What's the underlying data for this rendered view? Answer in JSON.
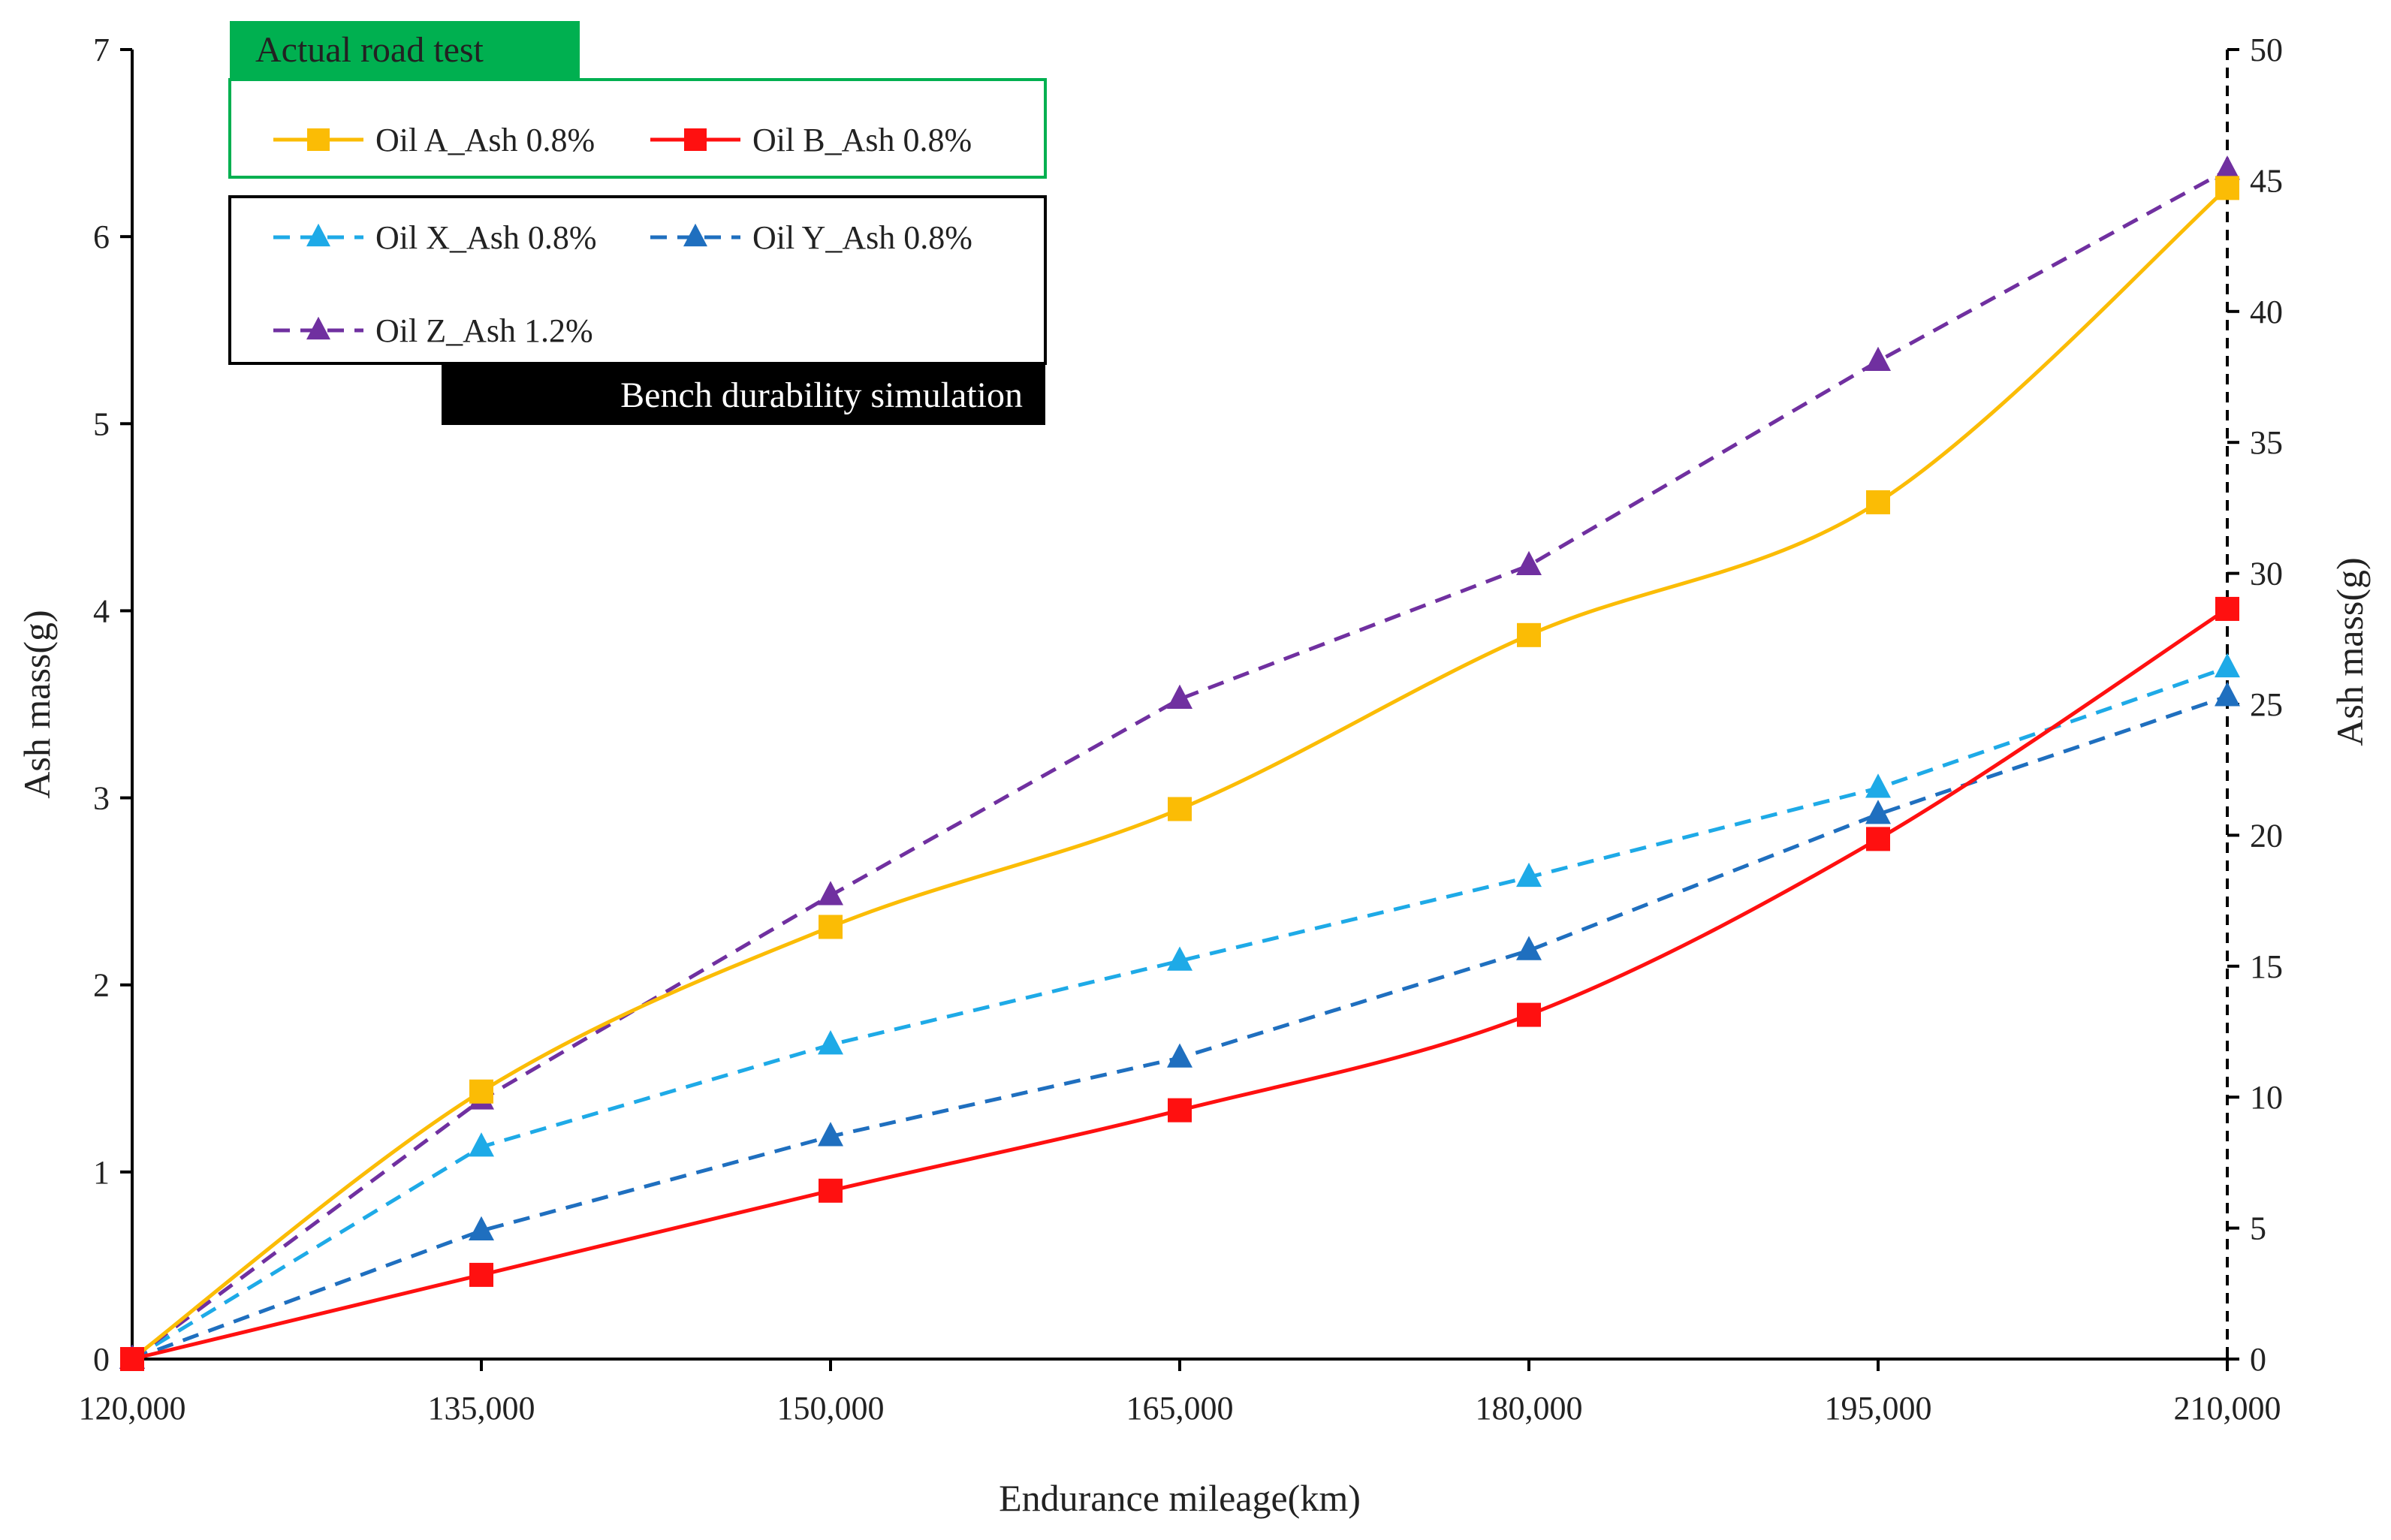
{
  "chart_data": {
    "type": "line",
    "title": "",
    "xlabel": "Endurance mileage(km)",
    "ylabel_left": "Ash mass(g)",
    "ylabel_right": "Ash mass(g)",
    "x": [
      120000,
      135000,
      150000,
      165000,
      180000,
      195000,
      210000
    ],
    "x_tick_labels": [
      "120,000",
      "135,000",
      "150,000",
      "165,000",
      "180,000",
      "195,000",
      "210,000"
    ],
    "xlim": [
      120000,
      210000
    ],
    "ylim_left": [
      0,
      7
    ],
    "ylim_right": [
      0,
      50
    ],
    "y_left_ticks": [
      "0",
      "1",
      "2",
      "3",
      "4",
      "5",
      "6",
      "7"
    ],
    "y_right_ticks": [
      "0",
      "5",
      "10",
      "15",
      "20",
      "25",
      "30",
      "35",
      "40",
      "45",
      "50"
    ],
    "grid": false,
    "legend_groups": [
      {
        "title": "Actual road test",
        "title_color": "#00b050",
        "border_color": "#00b050"
      },
      {
        "title": "Bench durability simulation",
        "title_color": "#000000",
        "border_color": "#000000"
      }
    ],
    "series": [
      {
        "name": "Oil A_Ash 0.8%",
        "group": "Actual road test",
        "axis": "left",
        "color": "#fbbc05",
        "marker": "square",
        "dashed": false,
        "smooth": true,
        "values": [
          0,
          1.43,
          2.31,
          2.94,
          3.87,
          4.58,
          6.26
        ]
      },
      {
        "name": "Oil B_Ash 0.8%",
        "group": "Actual road test",
        "axis": "left",
        "color": "#ff1010",
        "marker": "square",
        "dashed": false,
        "smooth": true,
        "values": [
          0,
          0.45,
          0.9,
          1.33,
          1.84,
          2.78,
          4.01
        ]
      },
      {
        "name": "Oil X_Ash 0.8%",
        "group": "Bench durability simulation",
        "axis": "right",
        "color": "#1eaae7",
        "marker": "triangle",
        "dashed": true,
        "smooth": false,
        "values": [
          0,
          8.1,
          12.0,
          15.2,
          18.4,
          21.8,
          26.4
        ]
      },
      {
        "name": "Oil Y_Ash 0.8%",
        "group": "Bench durability simulation",
        "axis": "right",
        "color": "#1f6fbf",
        "marker": "triangle",
        "dashed": true,
        "smooth": false,
        "values": [
          0,
          4.9,
          8.5,
          11.5,
          15.6,
          20.8,
          25.3
        ]
      },
      {
        "name": "Oil Z_Ash 1.2%",
        "group": "Bench durability simulation",
        "axis": "right",
        "color": "#7030a0",
        "marker": "triangle",
        "dashed": true,
        "smooth": false,
        "values": [
          0,
          9.9,
          17.7,
          25.2,
          30.3,
          38.1,
          45.4
        ]
      }
    ]
  }
}
